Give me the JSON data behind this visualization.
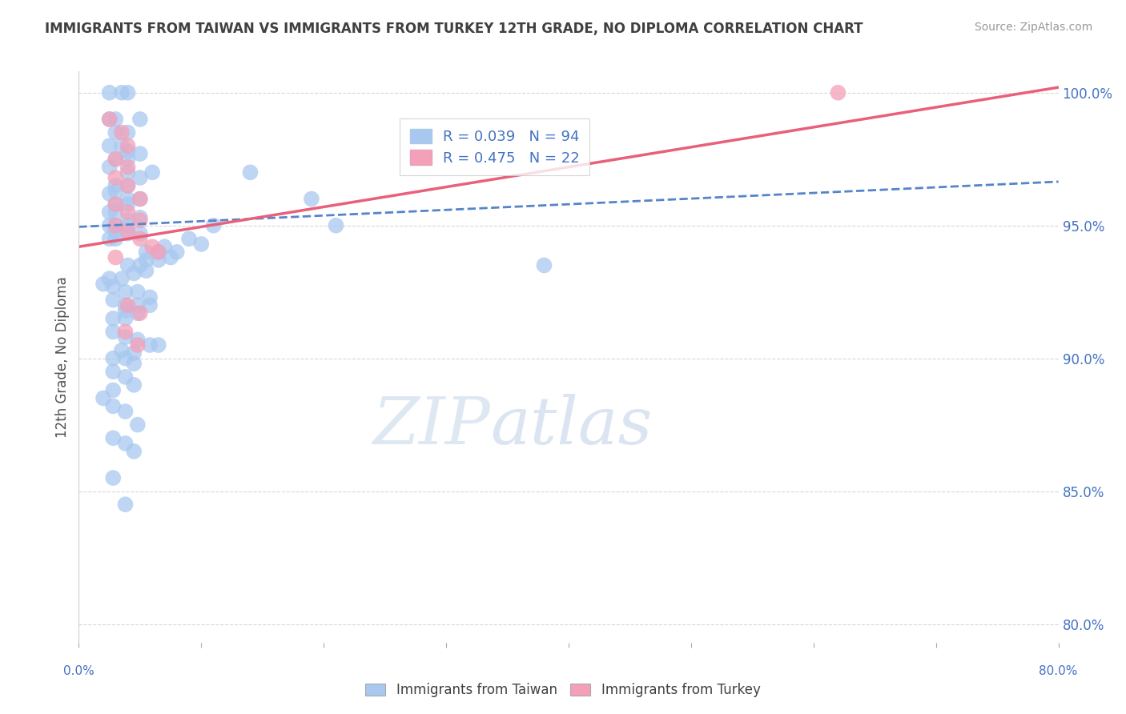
{
  "title": "IMMIGRANTS FROM TAIWAN VS IMMIGRANTS FROM TURKEY 12TH GRADE, NO DIPLOMA CORRELATION CHART",
  "source": "Source: ZipAtlas.com",
  "ylabel": "12th Grade, No Diploma",
  "watermark_zip": "ZIP",
  "watermark_atlas": "atlas",
  "legend_taiwan": "Immigrants from Taiwan",
  "legend_turkey": "Immigrants from Turkey",
  "R_taiwan": 0.039,
  "N_taiwan": 94,
  "R_turkey": 0.475,
  "N_turkey": 22,
  "color_taiwan": "#a8c8f0",
  "color_turkey": "#f4a0b8",
  "line_taiwan_color": "#5585c8",
  "line_turkey_color": "#e8607a",
  "xmin": 0.0,
  "xmax": 0.8,
  "ymin": 0.793,
  "ymax": 1.008,
  "yticks": [
    0.8,
    0.85,
    0.9,
    0.95,
    1.0
  ],
  "ytick_labels": [
    "80.0%",
    "85.0%",
    "90.0%",
    "95.0%",
    "100.0%"
  ],
  "xtick_positions": [
    0.0,
    0.1,
    0.2,
    0.3,
    0.4,
    0.5,
    0.6,
    0.7,
    0.8
  ],
  "xtick_labels": [
    "0.0%",
    "",
    "",
    "",
    "",
    "",
    "",
    "",
    "80.0%"
  ],
  "taiwan_scatter_x": [
    0.025,
    0.035,
    0.04,
    0.025,
    0.03,
    0.05,
    0.03,
    0.04,
    0.025,
    0.035,
    0.04,
    0.05,
    0.03,
    0.04,
    0.025,
    0.06,
    0.04,
    0.05,
    0.03,
    0.04,
    0.03,
    0.025,
    0.04,
    0.05,
    0.03,
    0.04,
    0.025,
    0.03,
    0.05,
    0.04,
    0.03,
    0.025,
    0.04,
    0.03,
    0.05,
    0.04,
    0.03,
    0.025,
    0.14,
    0.11,
    0.09,
    0.1,
    0.07,
    0.08,
    0.065,
    0.055,
    0.075,
    0.065,
    0.055,
    0.05,
    0.04,
    0.055,
    0.045,
    0.035,
    0.025,
    0.02,
    0.028,
    0.038,
    0.048,
    0.058,
    0.028,
    0.038,
    0.048,
    0.058,
    0.038,
    0.048,
    0.028,
    0.038,
    0.19,
    0.21,
    0.028,
    0.038,
    0.048,
    0.058,
    0.065,
    0.035,
    0.045,
    0.028,
    0.038,
    0.045,
    0.028,
    0.038,
    0.045,
    0.028,
    0.38,
    0.02,
    0.028,
    0.038,
    0.048,
    0.028,
    0.038,
    0.045,
    0.028,
    0.038
  ],
  "taiwan_scatter_y": [
    1.0,
    1.0,
    1.0,
    0.99,
    0.99,
    0.99,
    0.985,
    0.985,
    0.98,
    0.98,
    0.978,
    0.977,
    0.975,
    0.975,
    0.972,
    0.97,
    0.97,
    0.968,
    0.965,
    0.965,
    0.963,
    0.962,
    0.96,
    0.96,
    0.958,
    0.958,
    0.955,
    0.955,
    0.953,
    0.952,
    0.95,
    0.95,
    0.95,
    0.948,
    0.947,
    0.947,
    0.945,
    0.945,
    0.97,
    0.95,
    0.945,
    0.943,
    0.942,
    0.94,
    0.94,
    0.94,
    0.938,
    0.937,
    0.937,
    0.935,
    0.935,
    0.933,
    0.932,
    0.93,
    0.93,
    0.928,
    0.927,
    0.925,
    0.925,
    0.923,
    0.922,
    0.92,
    0.92,
    0.92,
    0.918,
    0.917,
    0.915,
    0.915,
    0.96,
    0.95,
    0.91,
    0.908,
    0.907,
    0.905,
    0.905,
    0.903,
    0.902,
    0.9,
    0.9,
    0.898,
    0.895,
    0.893,
    0.89,
    0.888,
    0.935,
    0.885,
    0.882,
    0.88,
    0.875,
    0.87,
    0.868,
    0.865,
    0.855,
    0.845
  ],
  "turkey_scatter_x": [
    0.025,
    0.035,
    0.04,
    0.03,
    0.04,
    0.03,
    0.04,
    0.05,
    0.03,
    0.04,
    0.05,
    0.03,
    0.04,
    0.05,
    0.06,
    0.065,
    0.03,
    0.04,
    0.05,
    0.62,
    0.038,
    0.048
  ],
  "turkey_scatter_y": [
    0.99,
    0.985,
    0.98,
    0.975,
    0.972,
    0.968,
    0.965,
    0.96,
    0.958,
    0.955,
    0.952,
    0.95,
    0.948,
    0.945,
    0.942,
    0.94,
    0.938,
    0.92,
    0.917,
    1.0,
    0.91,
    0.905
  ],
  "taiwan_line_x": [
    0.0,
    0.8
  ],
  "taiwan_line_y": [
    0.9495,
    0.9665
  ],
  "turkey_line_x": [
    0.0,
    0.8
  ],
  "turkey_line_y": [
    0.942,
    1.002
  ],
  "grid_color": "#d8d8d8",
  "title_color": "#404040",
  "axis_color": "#4472c4",
  "background_color": "#ffffff"
}
